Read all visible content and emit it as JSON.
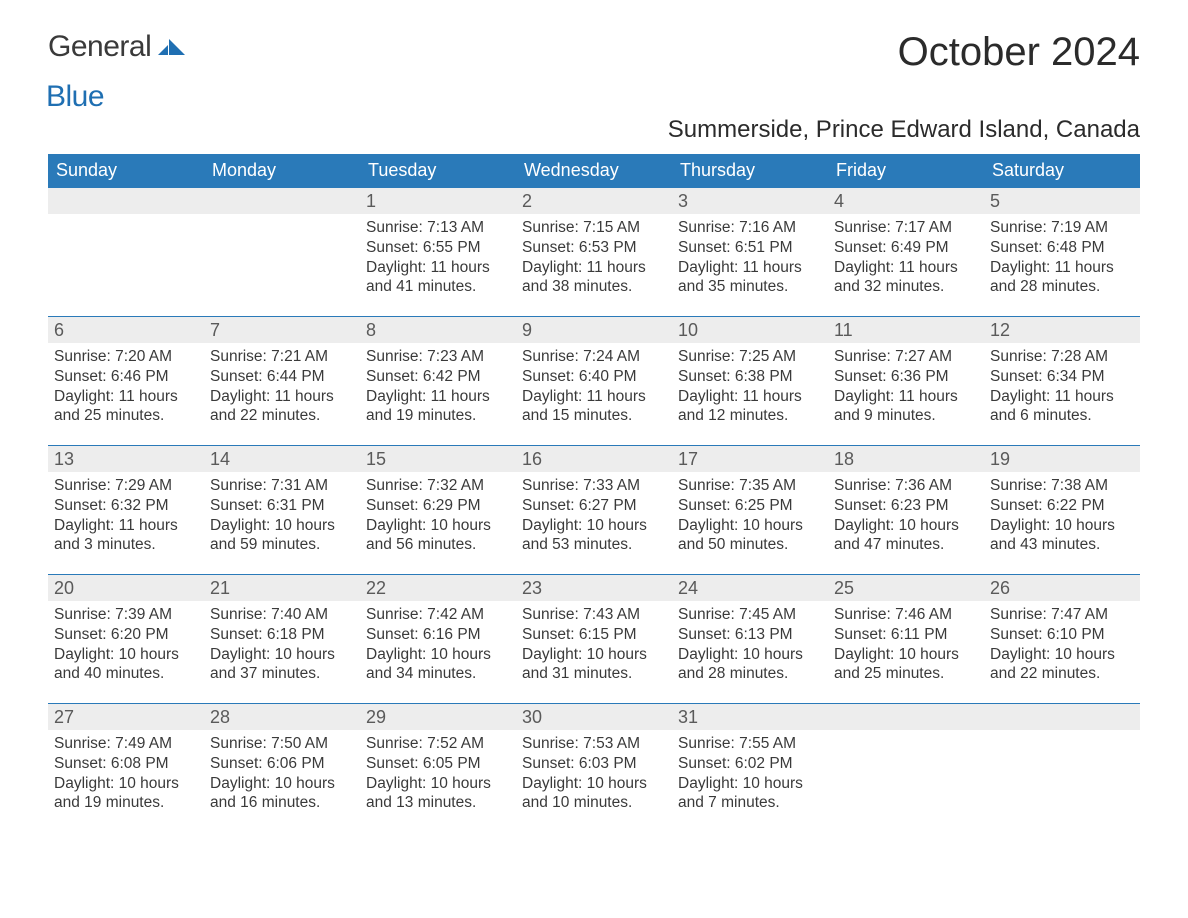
{
  "brand": {
    "word1": "General",
    "word2": "Blue"
  },
  "title": "October 2024",
  "location": "Summerside, Prince Edward Island, Canada",
  "colors": {
    "header_bg": "#2a7ab9",
    "header_text": "#ffffff",
    "daynum_bg": "#ededed",
    "daynum_text": "#5a5a5a",
    "body_text": "#3a3a3a",
    "row_border": "#2a7ab9",
    "brand_blue": "#1f6fb2",
    "page_bg": "#ffffff"
  },
  "typography": {
    "title_fontsize": 40,
    "location_fontsize": 24,
    "dayheader_fontsize": 18,
    "daynum_fontsize": 18,
    "body_fontsize": 15.5
  },
  "layout": {
    "columns": 7,
    "rows": 5,
    "leading_blanks": 2,
    "trailing_blanks": 2
  },
  "day_names": [
    "Sunday",
    "Monday",
    "Tuesday",
    "Wednesday",
    "Thursday",
    "Friday",
    "Saturday"
  ],
  "days": [
    {
      "n": "1",
      "sunrise": "Sunrise: 7:13 AM",
      "sunset": "Sunset: 6:55 PM",
      "daylight": "Daylight: 11 hours and 41 minutes."
    },
    {
      "n": "2",
      "sunrise": "Sunrise: 7:15 AM",
      "sunset": "Sunset: 6:53 PM",
      "daylight": "Daylight: 11 hours and 38 minutes."
    },
    {
      "n": "3",
      "sunrise": "Sunrise: 7:16 AM",
      "sunset": "Sunset: 6:51 PM",
      "daylight": "Daylight: 11 hours and 35 minutes."
    },
    {
      "n": "4",
      "sunrise": "Sunrise: 7:17 AM",
      "sunset": "Sunset: 6:49 PM",
      "daylight": "Daylight: 11 hours and 32 minutes."
    },
    {
      "n": "5",
      "sunrise": "Sunrise: 7:19 AM",
      "sunset": "Sunset: 6:48 PM",
      "daylight": "Daylight: 11 hours and 28 minutes."
    },
    {
      "n": "6",
      "sunrise": "Sunrise: 7:20 AM",
      "sunset": "Sunset: 6:46 PM",
      "daylight": "Daylight: 11 hours and 25 minutes."
    },
    {
      "n": "7",
      "sunrise": "Sunrise: 7:21 AM",
      "sunset": "Sunset: 6:44 PM",
      "daylight": "Daylight: 11 hours and 22 minutes."
    },
    {
      "n": "8",
      "sunrise": "Sunrise: 7:23 AM",
      "sunset": "Sunset: 6:42 PM",
      "daylight": "Daylight: 11 hours and 19 minutes."
    },
    {
      "n": "9",
      "sunrise": "Sunrise: 7:24 AM",
      "sunset": "Sunset: 6:40 PM",
      "daylight": "Daylight: 11 hours and 15 minutes."
    },
    {
      "n": "10",
      "sunrise": "Sunrise: 7:25 AM",
      "sunset": "Sunset: 6:38 PM",
      "daylight": "Daylight: 11 hours and 12 minutes."
    },
    {
      "n": "11",
      "sunrise": "Sunrise: 7:27 AM",
      "sunset": "Sunset: 6:36 PM",
      "daylight": "Daylight: 11 hours and 9 minutes."
    },
    {
      "n": "12",
      "sunrise": "Sunrise: 7:28 AM",
      "sunset": "Sunset: 6:34 PM",
      "daylight": "Daylight: 11 hours and 6 minutes."
    },
    {
      "n": "13",
      "sunrise": "Sunrise: 7:29 AM",
      "sunset": "Sunset: 6:32 PM",
      "daylight": "Daylight: 11 hours and 3 minutes."
    },
    {
      "n": "14",
      "sunrise": "Sunrise: 7:31 AM",
      "sunset": "Sunset: 6:31 PM",
      "daylight": "Daylight: 10 hours and 59 minutes."
    },
    {
      "n": "15",
      "sunrise": "Sunrise: 7:32 AM",
      "sunset": "Sunset: 6:29 PM",
      "daylight": "Daylight: 10 hours and 56 minutes."
    },
    {
      "n": "16",
      "sunrise": "Sunrise: 7:33 AM",
      "sunset": "Sunset: 6:27 PM",
      "daylight": "Daylight: 10 hours and 53 minutes."
    },
    {
      "n": "17",
      "sunrise": "Sunrise: 7:35 AM",
      "sunset": "Sunset: 6:25 PM",
      "daylight": "Daylight: 10 hours and 50 minutes."
    },
    {
      "n": "18",
      "sunrise": "Sunrise: 7:36 AM",
      "sunset": "Sunset: 6:23 PM",
      "daylight": "Daylight: 10 hours and 47 minutes."
    },
    {
      "n": "19",
      "sunrise": "Sunrise: 7:38 AM",
      "sunset": "Sunset: 6:22 PM",
      "daylight": "Daylight: 10 hours and 43 minutes."
    },
    {
      "n": "20",
      "sunrise": "Sunrise: 7:39 AM",
      "sunset": "Sunset: 6:20 PM",
      "daylight": "Daylight: 10 hours and 40 minutes."
    },
    {
      "n": "21",
      "sunrise": "Sunrise: 7:40 AM",
      "sunset": "Sunset: 6:18 PM",
      "daylight": "Daylight: 10 hours and 37 minutes."
    },
    {
      "n": "22",
      "sunrise": "Sunrise: 7:42 AM",
      "sunset": "Sunset: 6:16 PM",
      "daylight": "Daylight: 10 hours and 34 minutes."
    },
    {
      "n": "23",
      "sunrise": "Sunrise: 7:43 AM",
      "sunset": "Sunset: 6:15 PM",
      "daylight": "Daylight: 10 hours and 31 minutes."
    },
    {
      "n": "24",
      "sunrise": "Sunrise: 7:45 AM",
      "sunset": "Sunset: 6:13 PM",
      "daylight": "Daylight: 10 hours and 28 minutes."
    },
    {
      "n": "25",
      "sunrise": "Sunrise: 7:46 AM",
      "sunset": "Sunset: 6:11 PM",
      "daylight": "Daylight: 10 hours and 25 minutes."
    },
    {
      "n": "26",
      "sunrise": "Sunrise: 7:47 AM",
      "sunset": "Sunset: 6:10 PM",
      "daylight": "Daylight: 10 hours and 22 minutes."
    },
    {
      "n": "27",
      "sunrise": "Sunrise: 7:49 AM",
      "sunset": "Sunset: 6:08 PM",
      "daylight": "Daylight: 10 hours and 19 minutes."
    },
    {
      "n": "28",
      "sunrise": "Sunrise: 7:50 AM",
      "sunset": "Sunset: 6:06 PM",
      "daylight": "Daylight: 10 hours and 16 minutes."
    },
    {
      "n": "29",
      "sunrise": "Sunrise: 7:52 AM",
      "sunset": "Sunset: 6:05 PM",
      "daylight": "Daylight: 10 hours and 13 minutes."
    },
    {
      "n": "30",
      "sunrise": "Sunrise: 7:53 AM",
      "sunset": "Sunset: 6:03 PM",
      "daylight": "Daylight: 10 hours and 10 minutes."
    },
    {
      "n": "31",
      "sunrise": "Sunrise: 7:55 AM",
      "sunset": "Sunset: 6:02 PM",
      "daylight": "Daylight: 10 hours and 7 minutes."
    }
  ]
}
